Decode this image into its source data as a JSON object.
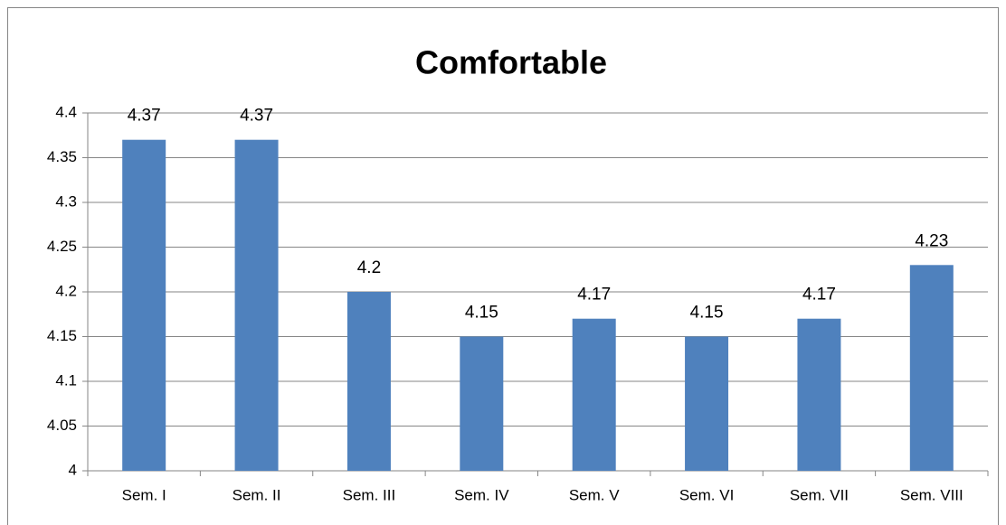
{
  "chart_data": {
    "type": "bar",
    "title": "Comfortable",
    "categories": [
      "Sem. I",
      "Sem. II",
      "Sem. III",
      "Sem. IV",
      "Sem. V",
      "Sem. VI",
      "Sem. VII",
      "Sem. VIII"
    ],
    "values": [
      4.37,
      4.37,
      4.2,
      4.15,
      4.17,
      4.15,
      4.17,
      4.23
    ],
    "color": "#4f81bd",
    "ylim": [
      4,
      4.4
    ],
    "yticks": [
      4,
      4.05,
      4.1,
      4.15,
      4.2,
      4.25,
      4.3,
      4.35,
      4.4
    ],
    "grid": true
  }
}
